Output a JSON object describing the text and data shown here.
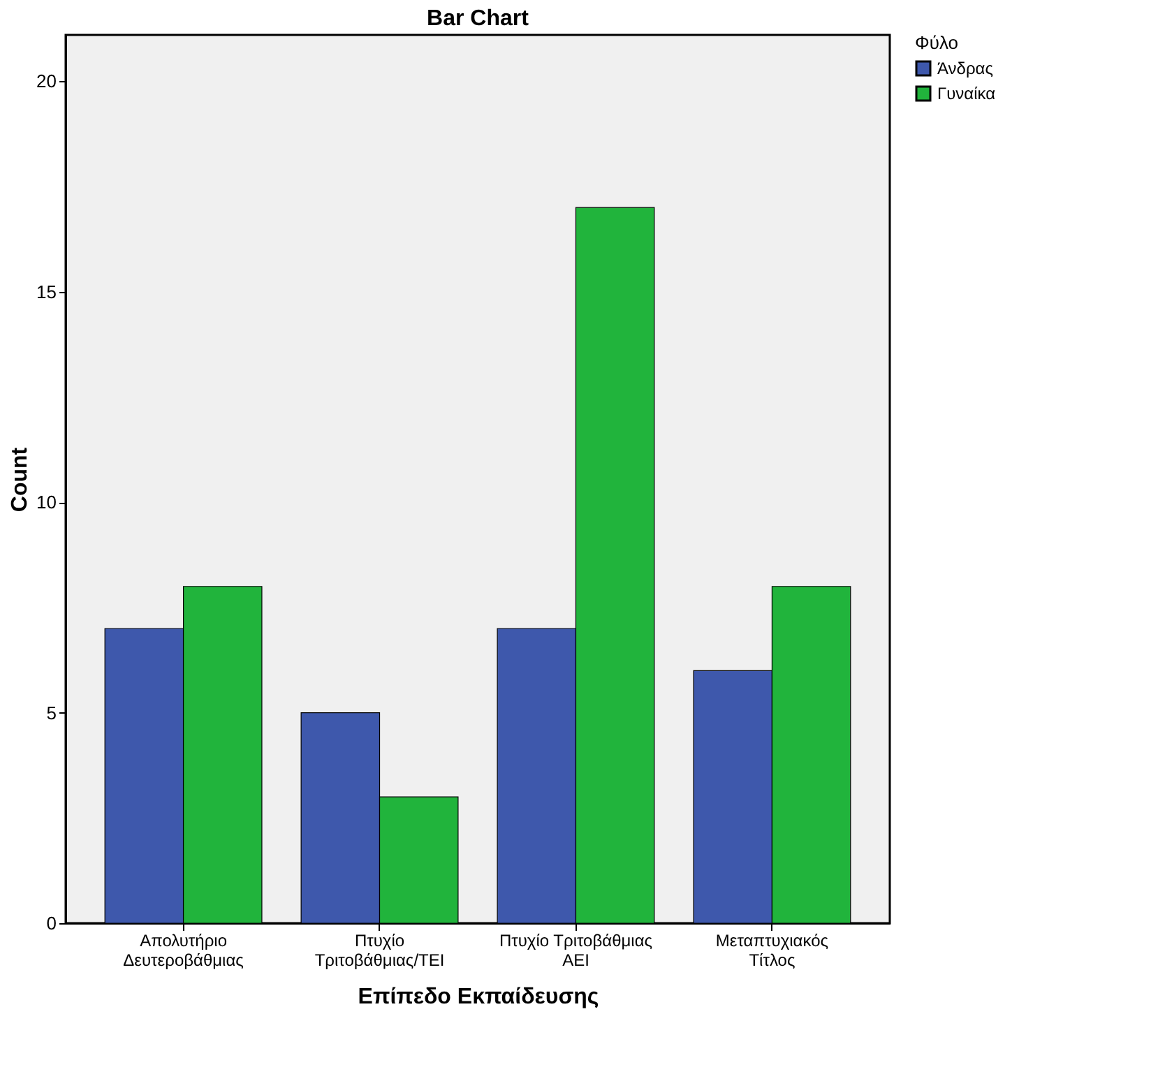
{
  "chart_data": {
    "type": "bar",
    "title": "Bar Chart",
    "xlabel": "Επίπεδο Εκπαίδευσης",
    "ylabel": "Count",
    "legend_title": "Φύλο",
    "categories": [
      "Απολυτήριο\nΔευτεροβάθμιας",
      "Πτυχίο\nΤριτοβάθμιας/ΤΕΙ",
      "Πτυχίο Τριτοβάθμιας\nΑΕΙ",
      "Μεταπτυχιακός\nΤίτλος"
    ],
    "series": [
      {
        "name": "Άνδρας",
        "color": "#3e58ac",
        "values": [
          7,
          5,
          7,
          6
        ]
      },
      {
        "name": "Γυναίκα",
        "color": "#21b43c",
        "values": [
          8,
          3,
          17,
          8
        ]
      }
    ],
    "ylim": [
      0,
      21.1
    ],
    "yticks": [
      0,
      5,
      10,
      15,
      20
    ],
    "grid": false,
    "legend": "top right"
  }
}
